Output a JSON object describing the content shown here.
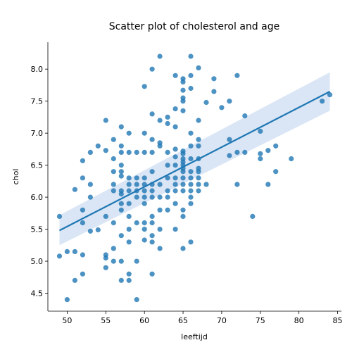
{
  "chart_data": {
    "type": "scatter",
    "title": "Scatter plot of cholesterol and age",
    "xlabel": "leeftijd",
    "ylabel": "chol",
    "xlim": [
      47.5,
      85.5
    ],
    "ylim": [
      4.22,
      8.42
    ],
    "xticks": [
      50,
      55,
      60,
      65,
      70,
      75,
      80,
      85
    ],
    "yticks": [
      4.5,
      5.0,
      5.5,
      6.0,
      6.5,
      7.0,
      7.5,
      8.0
    ],
    "grid": false,
    "regression": {
      "x": [
        49,
        84
      ],
      "y": [
        5.48,
        7.65
      ],
      "ci_lower": [
        5.25,
        7.35
      ],
      "ci_upper": [
        5.72,
        7.95
      ]
    },
    "colors": {
      "points": "#1f77b4",
      "line": "#1f77b4",
      "band": "#aec7e8"
    },
    "points": [
      [
        49,
        5.7
      ],
      [
        49,
        5.08
      ],
      [
        50,
        5.15
      ],
      [
        50,
        4.4
      ],
      [
        51,
        6.12
      ],
      [
        51,
        5.15
      ],
      [
        51,
        4.7
      ],
      [
        52,
        6.57
      ],
      [
        52,
        6.3
      ],
      [
        52,
        5.8
      ],
      [
        52,
        5.6
      ],
      [
        52,
        5.1
      ],
      [
        52,
        4.8
      ],
      [
        53,
        6.7
      ],
      [
        53,
        6.2
      ],
      [
        53,
        6.0
      ],
      [
        53,
        5.47
      ],
      [
        54,
        6.8
      ],
      [
        54,
        5.49
      ],
      [
        55,
        7.2
      ],
      [
        55,
        6.73
      ],
      [
        55,
        5.7
      ],
      [
        55,
        5.1
      ],
      [
        55,
        5.05
      ],
      [
        55,
        4.9
      ],
      [
        56,
        6.9
      ],
      [
        56,
        6.6
      ],
      [
        56,
        6.4
      ],
      [
        56,
        6.2
      ],
      [
        56,
        6.1
      ],
      [
        56,
        5.6
      ],
      [
        56,
        5.2
      ],
      [
        56,
        5.0
      ],
      [
        57,
        7.1
      ],
      [
        57,
        6.8
      ],
      [
        57,
        6.7
      ],
      [
        57,
        6.5
      ],
      [
        57,
        6.4
      ],
      [
        57,
        6.33
      ],
      [
        57,
        6.1
      ],
      [
        57,
        6.05
      ],
      [
        57,
        5.9
      ],
      [
        57,
        5.8
      ],
      [
        57,
        5.4
      ],
      [
        57,
        5.0
      ],
      [
        57,
        4.7
      ],
      [
        58,
        7.0
      ],
      [
        58,
        6.7
      ],
      [
        58,
        6.3
      ],
      [
        58,
        6.2
      ],
      [
        58,
        6.1
      ],
      [
        58,
        5.9
      ],
      [
        58,
        5.7
      ],
      [
        58,
        5.5
      ],
      [
        58,
        5.3
      ],
      [
        58,
        4.8
      ],
      [
        58,
        4.7
      ],
      [
        59,
        6.7
      ],
      [
        59,
        6.3
      ],
      [
        59,
        6.2
      ],
      [
        59,
        6.1
      ],
      [
        59,
        6.0
      ],
      [
        59,
        5.6
      ],
      [
        59,
        5.0
      ],
      [
        59,
        4.4
      ],
      [
        60,
        7.73
      ],
      [
        60,
        7.0
      ],
      [
        60,
        6.7
      ],
      [
        60,
        6.3
      ],
      [
        60,
        6.2
      ],
      [
        60,
        6.1
      ],
      [
        60,
        6.0
      ],
      [
        60,
        5.9
      ],
      [
        60,
        5.6
      ],
      [
        60,
        5.5
      ],
      [
        60,
        5.33
      ],
      [
        61,
        8.0
      ],
      [
        61,
        7.3
      ],
      [
        61,
        6.9
      ],
      [
        61,
        6.7
      ],
      [
        61,
        6.4
      ],
      [
        61,
        6.2
      ],
      [
        61,
        6.1
      ],
      [
        61,
        6.0
      ],
      [
        61,
        5.7
      ],
      [
        61,
        5.6
      ],
      [
        61,
        5.4
      ],
      [
        61,
        5.3
      ],
      [
        61,
        4.8
      ],
      [
        62,
        8.2
      ],
      [
        62,
        7.2
      ],
      [
        62,
        6.85
      ],
      [
        62,
        6.8
      ],
      [
        62,
        6.2
      ],
      [
        62,
        6.0
      ],
      [
        62,
        5.8
      ],
      [
        62,
        5.5
      ],
      [
        62,
        5.2
      ],
      [
        63,
        7.25
      ],
      [
        63,
        7.15
      ],
      [
        63,
        6.7
      ],
      [
        63,
        6.5
      ],
      [
        63,
        6.3
      ],
      [
        63,
        6.1
      ],
      [
        63,
        6.0
      ],
      [
        63,
        5.8
      ],
      [
        64,
        7.9
      ],
      [
        64,
        7.38
      ],
      [
        64,
        7.1
      ],
      [
        64,
        6.75
      ],
      [
        64,
        6.63
      ],
      [
        64,
        6.5
      ],
      [
        64,
        6.3
      ],
      [
        64,
        6.2
      ],
      [
        64,
        6.1
      ],
      [
        64,
        5.9
      ],
      [
        64,
        5.5
      ],
      [
        65,
        7.85
      ],
      [
        65,
        7.8
      ],
      [
        65,
        7.67
      ],
      [
        65,
        7.55
      ],
      [
        65,
        7.5
      ],
      [
        65,
        7.35
      ],
      [
        65,
        6.72
      ],
      [
        65,
        6.68
      ],
      [
        65,
        6.6
      ],
      [
        65,
        6.55
      ],
      [
        65,
        6.5
      ],
      [
        65,
        6.45
      ],
      [
        65,
        6.4
      ],
      [
        65,
        6.3
      ],
      [
        65,
        6.2
      ],
      [
        65,
        6.1
      ],
      [
        65,
        5.8
      ],
      [
        65,
        5.7
      ],
      [
        65,
        5.2
      ],
      [
        66,
        8.2
      ],
      [
        66,
        7.9
      ],
      [
        66,
        7.7
      ],
      [
        66,
        7.0
      ],
      [
        66,
        6.8
      ],
      [
        66,
        6.6
      ],
      [
        66,
        6.4
      ],
      [
        66,
        6.3
      ],
      [
        66,
        6.2
      ],
      [
        66,
        6.1
      ],
      [
        66,
        6.0
      ],
      [
        66,
        5.9
      ],
      [
        66,
        5.3
      ],
      [
        67,
        8.02
      ],
      [
        67,
        7.2
      ],
      [
        67,
        6.9
      ],
      [
        67,
        6.8
      ],
      [
        67,
        6.6
      ],
      [
        67,
        6.45
      ],
      [
        67,
        6.4
      ],
      [
        67,
        6.3
      ],
      [
        67,
        6.2
      ],
      [
        67,
        6.1
      ],
      [
        68,
        7.48
      ],
      [
        68,
        6.2
      ],
      [
        69,
        7.85
      ],
      [
        69,
        7.65
      ],
      [
        70,
        7.4
      ],
      [
        71,
        7.5
      ],
      [
        71,
        6.9
      ],
      [
        71,
        6.65
      ],
      [
        72,
        7.9
      ],
      [
        72,
        6.7
      ],
      [
        72,
        6.2
      ],
      [
        73,
        7.27
      ],
      [
        73,
        6.7
      ],
      [
        74,
        5.7
      ],
      [
        75,
        7.03
      ],
      [
        75,
        6.68
      ],
      [
        75,
        6.6
      ],
      [
        76,
        6.73
      ],
      [
        76,
        6.2
      ],
      [
        77,
        6.8
      ],
      [
        77,
        6.4
      ],
      [
        79,
        6.6
      ],
      [
        83,
        7.5
      ],
      [
        84,
        7.6
      ]
    ]
  }
}
